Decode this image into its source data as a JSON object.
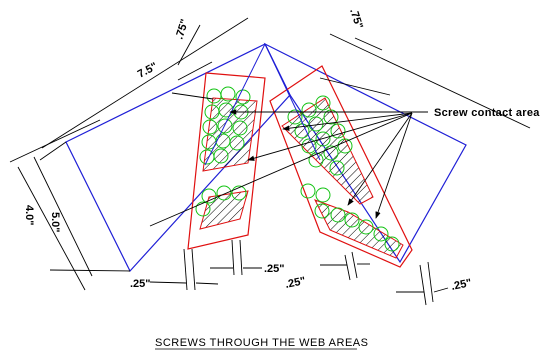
{
  "title": "SCREWS THROUGH THE WEB AREAS",
  "callout": "Screw contact area",
  "dimensions": {
    "top_length": "7.5\"",
    "top_offset_left": ".75\"",
    "top_offset_right": ".75\"",
    "left_height_inner": "4.0\"",
    "left_height_outer": "5.0\"",
    "gap_bottom_1": ".25\"",
    "gap_bottom_2": ".25\"",
    "gap_bottom_3": ".25\"",
    "gap_bottom_4": ".25\""
  },
  "colors": {
    "outline": "#1f1fd6",
    "web": "#e01010",
    "screw": "#13c313",
    "dimension": "#000000"
  }
}
